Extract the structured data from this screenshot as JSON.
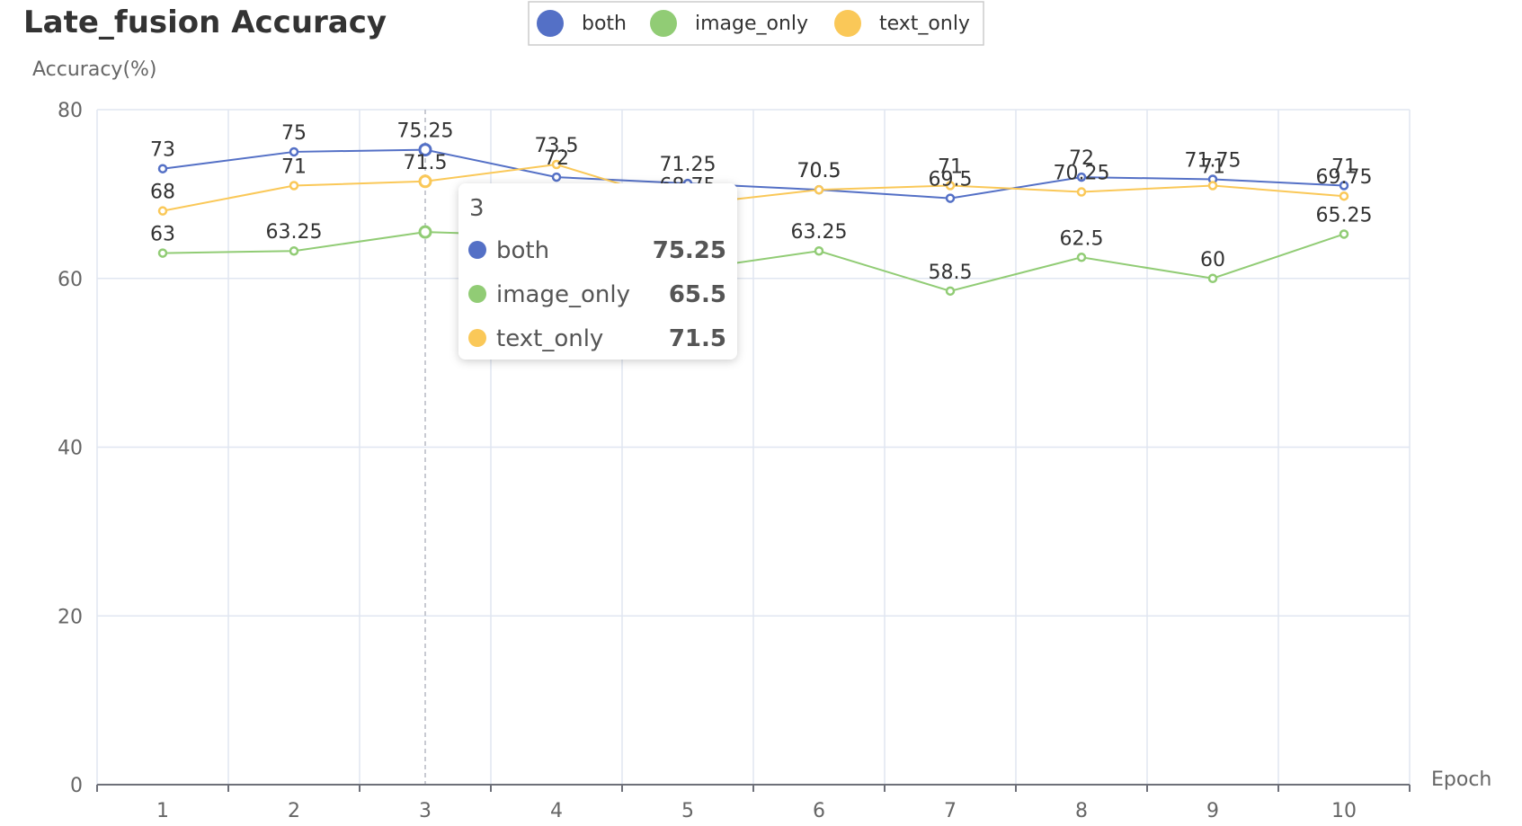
{
  "chart_data": {
    "type": "line",
    "title": "Late_fusion Accuracy",
    "xlabel": "Epoch",
    "ylabel": "Accuracy(%)",
    "categories": [
      "1",
      "2",
      "3",
      "4",
      "5",
      "6",
      "7",
      "8",
      "9",
      "10"
    ],
    "ylim": [
      0,
      80
    ],
    "yticks": [
      0,
      20,
      40,
      60,
      80
    ],
    "grid": true,
    "legend_position": "top-center",
    "series": [
      {
        "name": "both",
        "color": "#5470c6",
        "values": [
          73,
          75,
          75.25,
          72,
          71.25,
          70.5,
          69.5,
          72,
          71.75,
          71
        ]
      },
      {
        "name": "image_only",
        "color": "#91cc75",
        "values": [
          63,
          63.25,
          65.5,
          65,
          61,
          63.25,
          58.5,
          62.5,
          60,
          65.25
        ]
      },
      {
        "name": "text_only",
        "color": "#fac858",
        "values": [
          68,
          71,
          71.5,
          73.5,
          68.75,
          70.5,
          71,
          70.25,
          71,
          69.75
        ]
      }
    ],
    "hidden_labels": {
      "image_only": [
        3,
        4
      ]
    },
    "tooltip": {
      "category": "3",
      "rows": [
        {
          "name": "both",
          "value": "75.25"
        },
        {
          "name": "image_only",
          "value": "65.5"
        },
        {
          "name": "text_only",
          "value": "71.5"
        }
      ]
    }
  }
}
